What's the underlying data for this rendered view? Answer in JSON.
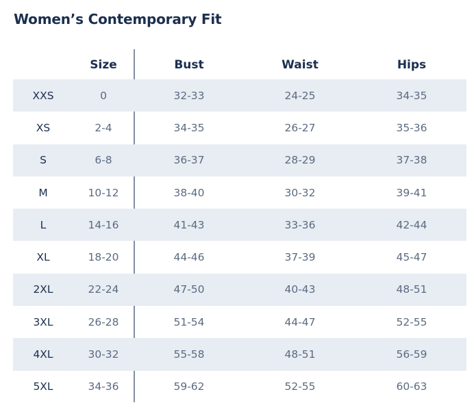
{
  "title": "Women’s Contemporary Fit",
  "headers": [
    "",
    "Size",
    "Bust",
    "Waist",
    "Hips"
  ],
  "rows": [
    {
      "label": "XXS",
      "size": "0",
      "bust": "32-33",
      "waist": "24-25",
      "hips": "34-35"
    },
    {
      "label": "XS",
      "size": "2-4",
      "bust": "34-35",
      "waist": "26-27",
      "hips": "35-36"
    },
    {
      "label": "S",
      "size": "6-8",
      "bust": "36-37",
      "waist": "28-29",
      "hips": "37-38"
    },
    {
      "label": "M",
      "size": "10-12",
      "bust": "38-40",
      "waist": "30-32",
      "hips": "39-41"
    },
    {
      "label": "L",
      "size": "14-16",
      "bust": "41-43",
      "waist": "33-36",
      "hips": "42-44"
    },
    {
      "label": "XL",
      "size": "18-20",
      "bust": "44-46",
      "waist": "37-39",
      "hips": "45-47"
    },
    {
      "label": "2XL",
      "size": "22-24",
      "bust": "47-50",
      "waist": "40-43",
      "hips": "48-51"
    },
    {
      "label": "3XL",
      "size": "26-28",
      "bust": "51-54",
      "waist": "44-47",
      "hips": "52-55"
    },
    {
      "label": "4XL",
      "size": "30-32",
      "bust": "55-58",
      "waist": "48-51",
      "hips": "56-59"
    },
    {
      "label": "5XL",
      "size": "34-36",
      "bust": "59-62",
      "waist": "52-55",
      "hips": "60-63"
    }
  ],
  "colors": {
    "title": "#1b2f4e",
    "label_text": "#1b2f4e",
    "value_text": "#5b6b80",
    "row_shade": "#e8ecf3",
    "divider": "#7f8ea1"
  }
}
